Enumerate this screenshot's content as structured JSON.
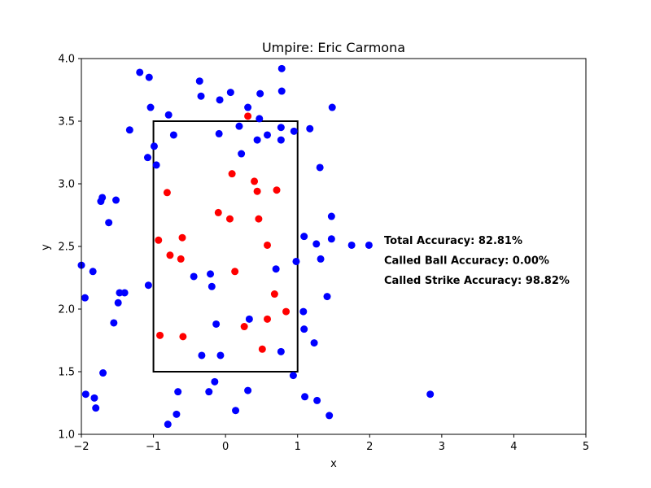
{
  "chart_data": {
    "type": "scatter",
    "title": "Umpire: Eric Carmona",
    "xlabel": "x",
    "ylabel": "y",
    "xlim": [
      -2,
      5
    ],
    "ylim": [
      1.0,
      4.0
    ],
    "xticks": [
      "−2",
      "−1",
      "0",
      "1",
      "2",
      "3",
      "4",
      "5"
    ],
    "yticks": [
      "1.0",
      "1.5",
      "2.0",
      "2.5",
      "3.0",
      "3.5",
      "4.0"
    ],
    "grid": false,
    "strike_zone": {
      "x": [
        -1,
        1
      ],
      "y": [
        1.5,
        3.5
      ],
      "color": "#000000"
    },
    "series": [
      {
        "color": "#0000ff",
        "points": [
          [
            -1.19,
            3.89
          ],
          [
            -1.06,
            3.85
          ],
          [
            -0.36,
            3.82
          ],
          [
            0.78,
            3.92
          ],
          [
            -0.34,
            3.7
          ],
          [
            0.07,
            3.73
          ],
          [
            0.48,
            3.72
          ],
          [
            0.78,
            3.74
          ],
          [
            -1.04,
            3.61
          ],
          [
            -0.79,
            3.55
          ],
          [
            -0.08,
            3.67
          ],
          [
            0.31,
            3.61
          ],
          [
            1.48,
            3.61
          ],
          [
            -1.33,
            3.43
          ],
          [
            -0.72,
            3.39
          ],
          [
            -0.09,
            3.4
          ],
          [
            0.19,
            3.46
          ],
          [
            0.47,
            3.52
          ],
          [
            0.77,
            3.45
          ],
          [
            0.95,
            3.42
          ],
          [
            1.17,
            3.44
          ],
          [
            -0.99,
            3.3
          ],
          [
            0.44,
            3.35
          ],
          [
            0.58,
            3.39
          ],
          [
            0.77,
            3.35
          ],
          [
            -1.08,
            3.21
          ],
          [
            -0.96,
            3.15
          ],
          [
            0.22,
            3.24
          ],
          [
            1.31,
            3.13
          ],
          [
            -1.73,
            2.86
          ],
          [
            -1.71,
            2.89
          ],
          [
            -1.52,
            2.87
          ],
          [
            -1.62,
            2.69
          ],
          [
            1.47,
            2.74
          ],
          [
            1.09,
            2.58
          ],
          [
            1.26,
            2.52
          ],
          [
            1.47,
            2.56
          ],
          [
            1.75,
            2.51
          ],
          [
            1.99,
            2.51
          ],
          [
            -2.0,
            2.35
          ],
          [
            -1.84,
            2.3
          ],
          [
            -1.07,
            2.19
          ],
          [
            -0.44,
            2.26
          ],
          [
            -0.21,
            2.28
          ],
          [
            -0.19,
            2.18
          ],
          [
            0.7,
            2.32
          ],
          [
            0.98,
            2.38
          ],
          [
            1.32,
            2.4
          ],
          [
            -1.95,
            2.09
          ],
          [
            -1.47,
            2.13
          ],
          [
            -1.4,
            2.13
          ],
          [
            -1.49,
            2.05
          ],
          [
            1.41,
            2.1
          ],
          [
            -1.55,
            1.89
          ],
          [
            -0.13,
            1.88
          ],
          [
            0.33,
            1.92
          ],
          [
            1.08,
            1.98
          ],
          [
            1.09,
            1.84
          ],
          [
            1.23,
            1.73
          ],
          [
            -0.33,
            1.63
          ],
          [
            -0.07,
            1.63
          ],
          [
            0.77,
            1.66
          ],
          [
            -1.7,
            1.49
          ],
          [
            0.94,
            1.47
          ],
          [
            -0.15,
            1.42
          ],
          [
            -1.94,
            1.32
          ],
          [
            -1.82,
            1.29
          ],
          [
            -0.66,
            1.34
          ],
          [
            -0.23,
            1.34
          ],
          [
            0.31,
            1.35
          ],
          [
            1.1,
            1.3
          ],
          [
            1.27,
            1.27
          ],
          [
            2.84,
            1.32
          ],
          [
            -1.8,
            1.21
          ],
          [
            -0.68,
            1.16
          ],
          [
            0.14,
            1.19
          ],
          [
            1.44,
            1.15
          ],
          [
            -0.8,
            1.08
          ]
        ]
      },
      {
        "color": "#ff0000",
        "points": [
          [
            0.31,
            3.54
          ],
          [
            0.09,
            3.08
          ],
          [
            0.4,
            3.02
          ],
          [
            -0.81,
            2.93
          ],
          [
            0.44,
            2.94
          ],
          [
            0.71,
            2.95
          ],
          [
            -0.1,
            2.77
          ],
          [
            0.06,
            2.72
          ],
          [
            0.46,
            2.72
          ],
          [
            -0.93,
            2.55
          ],
          [
            -0.6,
            2.57
          ],
          [
            0.58,
            2.51
          ],
          [
            -0.77,
            2.43
          ],
          [
            -0.62,
            2.4
          ],
          [
            0.13,
            2.3
          ],
          [
            0.68,
            2.12
          ],
          [
            0.84,
            1.98
          ],
          [
            0.26,
            1.86
          ],
          [
            0.58,
            1.92
          ],
          [
            -0.91,
            1.79
          ],
          [
            -0.59,
            1.78
          ],
          [
            0.51,
            1.68
          ]
        ]
      }
    ],
    "annotations": [
      "Total Accuracy: 82.81%",
      "Called Ball Accuracy: 0.00%",
      "Called Strike Accuracy: 98.82%"
    ]
  }
}
